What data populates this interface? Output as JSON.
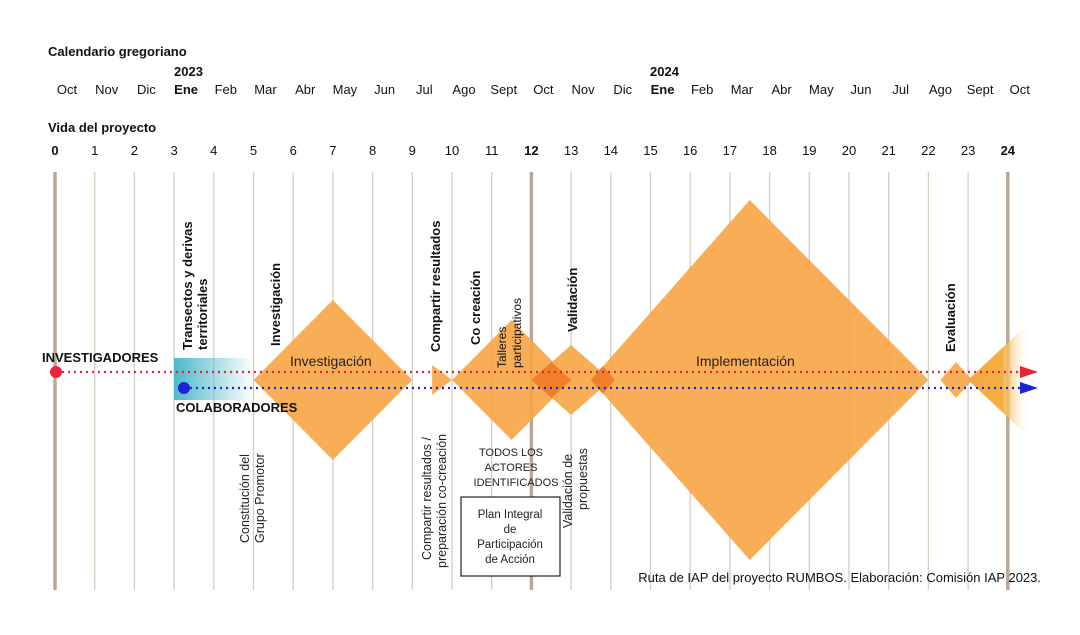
{
  "calendar": {
    "heading": "Calendario gregoriano",
    "year_2023": "2023",
    "year_2024": "2024",
    "months": [
      "Oct",
      "Nov",
      "Dic",
      "Ene",
      "Feb",
      "Mar",
      "Abr",
      "May",
      "Jun",
      "Jul",
      "Ago",
      "Sept",
      "Oct",
      "Nov",
      "Dic",
      "Ene",
      "Feb",
      "Mar",
      "Abr",
      "May",
      "Jun",
      "Jul",
      "Ago",
      "Sept",
      "Oct"
    ]
  },
  "project": {
    "heading": "Vida del proyecto",
    "months": [
      "0",
      "1",
      "2",
      "3",
      "4",
      "5",
      "6",
      "7",
      "8",
      "9",
      "10",
      "11",
      "12",
      "13",
      "14",
      "15",
      "16",
      "17",
      "18",
      "19",
      "20",
      "21",
      "22",
      "23",
      "24"
    ]
  },
  "actors": {
    "investigadores": "INVESTIGADORES",
    "colaboradores": "COLABORADORES"
  },
  "phase_labels": {
    "transectos": [
      "Transectos y derivas",
      "territoriales"
    ],
    "investigacion_v": "Investigación",
    "investigacion_h": "Investigación",
    "compartir": "Compartir resultados",
    "cocreacion": "Co creación",
    "talleres": [
      "Talleres",
      "participativos"
    ],
    "validacion": "Validación",
    "implementacion_v": "Implementación",
    "implementacion_h": "Implementación",
    "evaluacion": "Evaluación"
  },
  "bottom_labels": {
    "constitucion": [
      "Constitución del",
      "Grupo Promotor"
    ],
    "compartir_prep": [
      "Compartir resultados /",
      "preparación co-creación"
    ],
    "todos": [
      "TODOS LOS",
      "ACTORES",
      "IDENTIFICADOS"
    ],
    "validacion_prop": [
      "Validación de",
      "propuestas"
    ]
  },
  "plan_box": [
    "Plan Integral",
    "de",
    "Participación",
    "de Acción"
  ],
  "caption": "Ruta de IAP del proyecto RUMBOS. Elaboración: Comisión IAP 2023.",
  "colors": {
    "diamond": "#f7a545",
    "diamond_overlap": "#f07f2a",
    "grid_line": "#d9ccc0",
    "grid_major": "#b8a898",
    "teal": "#4db8c9",
    "red": "#e8243a",
    "blue": "#1a24d6"
  },
  "events": {
    "diamonds": [
      {
        "name": "investigacion",
        "start": 5,
        "peak": 7,
        "end": 9,
        "half_height": 80
      },
      {
        "name": "compartir",
        "start": 9.5,
        "peak": 9.5,
        "end": 10,
        "half_height": 15
      },
      {
        "name": "cocreacion",
        "start": 10,
        "peak": 11.5,
        "end": 13,
        "half_height": 60
      },
      {
        "name": "validacion",
        "start": 12,
        "peak": 13,
        "end": 14,
        "half_height": 35
      },
      {
        "name": "implementacion",
        "start": 13.5,
        "peak": 17.5,
        "end": 22,
        "half_height": 180
      },
      {
        "name": "evaluacion",
        "start": 22.3,
        "peak": 22.7,
        "end": 23.1,
        "half_height": 18
      }
    ]
  }
}
